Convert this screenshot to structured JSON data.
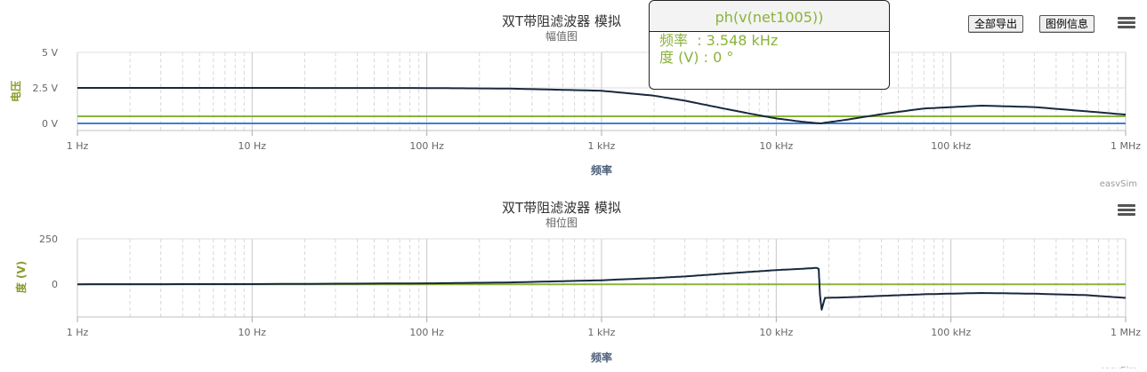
{
  "charts": [
    {
      "title": "双T带阻滤波器 模拟",
      "subtitle": "幅值图",
      "xlabel": "频率",
      "ylabel": "电压",
      "credit": "easySim",
      "export_button": "全部导出",
      "legend_button": "图例信息"
    },
    {
      "title": "双T带阻滤波器 模拟",
      "subtitle": "相位图",
      "xlabel": "频率",
      "ylabel": "度 (V)",
      "credit": "easySim"
    }
  ],
  "tooltip": {
    "title": "ph(v(net1005))",
    "row1_label": "频率",
    "row1_value": ": 3.548 kHz",
    "row2_label": "度 (V)",
    "row2_value": ": 0 °"
  },
  "chart_data": [
    {
      "type": "line",
      "title": "双T带阻滤波器 模拟",
      "subtitle": "幅值图",
      "xlabel": "频率",
      "ylabel": "电压",
      "xscale": "log",
      "xlim": [
        1,
        1000000
      ],
      "ylim": [
        -0.5,
        5
      ],
      "xticks": [
        1,
        10,
        100,
        1000,
        10000,
        100000,
        1000000
      ],
      "xtick_labels": [
        "1 Hz",
        "10 Hz",
        "100 Hz",
        "1 kHz",
        "10 kHz",
        "100 kHz",
        "1 MHz"
      ],
      "yticks": [
        0,
        2.5,
        5
      ],
      "ytick_labels": [
        "0 V",
        "2.5 V",
        "5 V"
      ],
      "grid": true,
      "colors": {
        "dark": "#17293d",
        "green": "#8ab33a",
        "blue": "#3f7fd8"
      },
      "series": [
        {
          "color": "#17293d",
          "x": [
            1,
            10,
            100,
            300,
            1000,
            2000,
            3000,
            5000,
            7000,
            10000,
            14000,
            17800,
            25000,
            40000,
            70000,
            150000,
            300000,
            600000,
            1000000
          ],
          "y": [
            2.5,
            2.5,
            2.49,
            2.45,
            2.3,
            1.95,
            1.6,
            1.05,
            0.7,
            0.35,
            0.12,
            0.0,
            0.25,
            0.65,
            1.05,
            1.25,
            1.15,
            0.85,
            0.62
          ]
        },
        {
          "color": "#8ab33a",
          "x": [
            1,
            1000000
          ],
          "y": [
            0.5,
            0.5
          ]
        },
        {
          "color": "#3f7fd8",
          "x": [
            1,
            1000000
          ],
          "y": [
            0,
            0
          ]
        }
      ]
    },
    {
      "type": "line",
      "title": "双T带阻滤波器 模拟",
      "subtitle": "相位图",
      "xlabel": "频率",
      "ylabel": "度 (V)",
      "xscale": "log",
      "xlim": [
        1,
        1000000
      ],
      "ylim": [
        -180,
        250
      ],
      "xticks": [
        1,
        10,
        100,
        1000,
        10000,
        100000,
        1000000
      ],
      "xtick_labels": [
        "1 Hz",
        "10 Hz",
        "100 Hz",
        "1 kHz",
        "10 kHz",
        "100 kHz",
        "1 MHz"
      ],
      "yticks": [
        0,
        250
      ],
      "ytick_labels": [
        "0",
        "250"
      ],
      "grid": true,
      "series": [
        {
          "color": "#17293d",
          "x": [
            1,
            10,
            100,
            300,
            1000,
            2000,
            3000,
            5000,
            7000,
            10000,
            14000,
            17000,
            17500,
            17800,
            18200,
            19000,
            25000,
            40000,
            70000,
            150000,
            300000,
            600000,
            1000000
          ],
          "y": [
            0,
            1,
            5,
            10,
            22,
            34,
            43,
            58,
            68,
            78,
            85,
            90,
            85,
            -60,
            -140,
            -75,
            -72,
            -64,
            -55,
            -48,
            -52,
            -60,
            -75
          ]
        },
        {
          "color": "#8ab33a",
          "x": [
            1,
            1000000
          ],
          "y": [
            0,
            0
          ]
        }
      ]
    }
  ]
}
